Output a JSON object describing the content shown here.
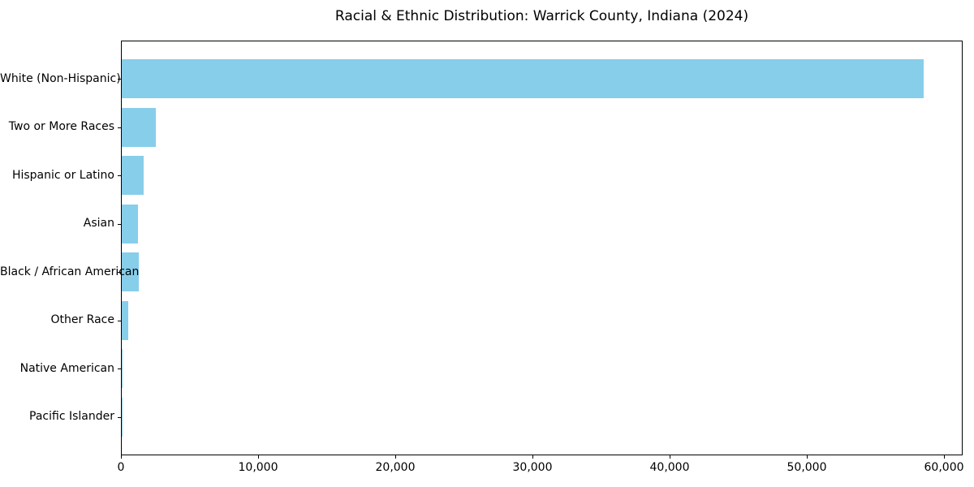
{
  "chart_data": {
    "type": "bar",
    "orientation": "horizontal",
    "title": "Racial & Ethnic Distribution: Warrick County, Indiana (2024)",
    "categories": [
      "White (Non-Hispanic)",
      "Two or More Races",
      "Hispanic or Latino",
      "Asian",
      "Black / African American",
      "Other Race",
      "Native American",
      "Pacific Islander"
    ],
    "values": [
      58440,
      2480,
      1600,
      1180,
      1240,
      460,
      80,
      25
    ],
    "xlabel": "",
    "ylabel": "",
    "xlim": [
      0,
      61360
    ],
    "x_ticks": [
      0,
      10000,
      20000,
      30000,
      40000,
      50000,
      60000
    ],
    "x_tick_labels": [
      "0",
      "10,000",
      "20,000",
      "30,000",
      "40,000",
      "50,000",
      "60,000"
    ],
    "bar_color": "#87CEEB",
    "text_color": "#000000",
    "grid": false,
    "legend_position": "none"
  }
}
